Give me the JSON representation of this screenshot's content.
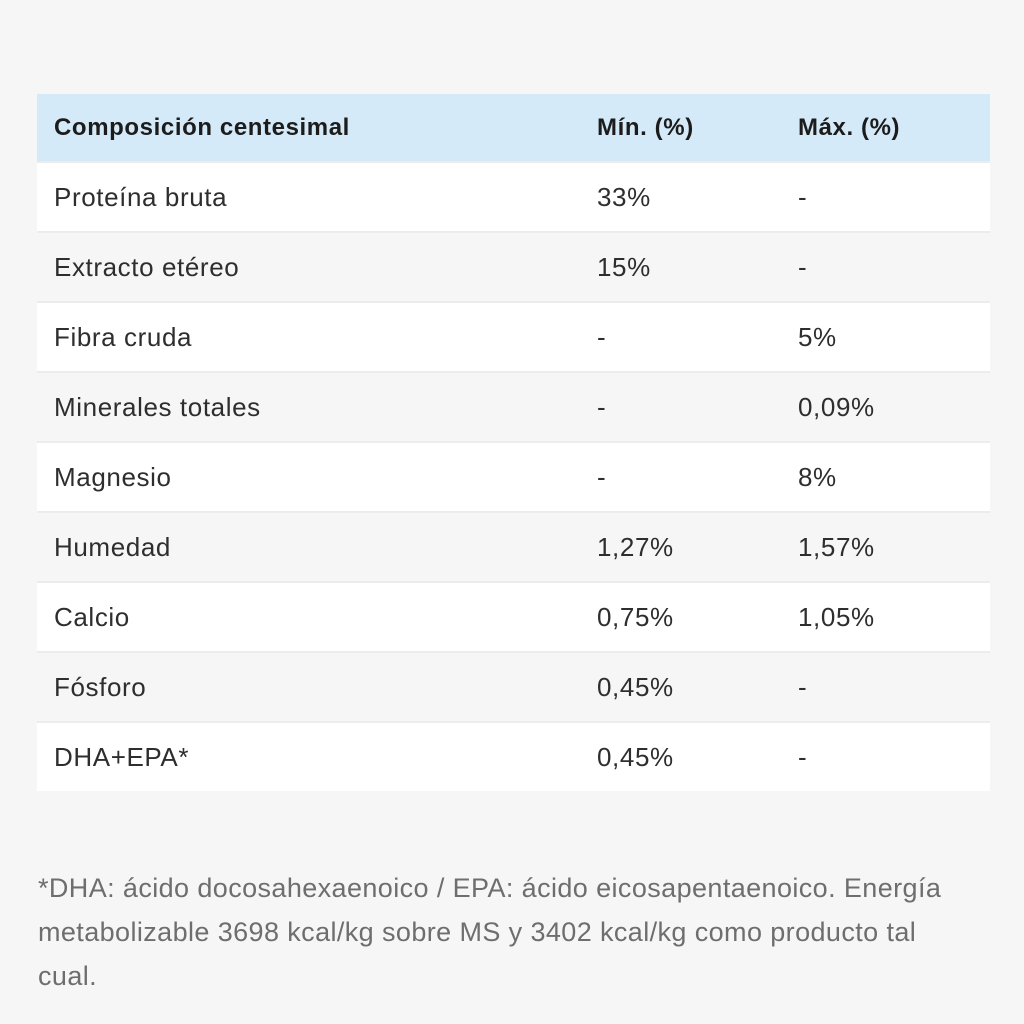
{
  "colors": {
    "page_background": "#f7f6f6",
    "header_background": "#d5eaf8",
    "row_stripe": "#f6f6f6",
    "body_text": "#2e2e2e",
    "footnote_text": "#6e6e6e"
  },
  "table": {
    "header": {
      "col1": "Composición centesimal",
      "col2": "Mín. (%)",
      "col3": "Máx. (%)"
    },
    "rows": [
      {
        "label": "Proteína bruta",
        "min": "33%",
        "max": "-"
      },
      {
        "label": "Extracto etéreo",
        "min": "15%",
        "max": "-"
      },
      {
        "label": "Fibra cruda",
        "min": "-",
        "max": "5%"
      },
      {
        "label": "Minerales totales",
        "min": "-",
        "max": "0,09%"
      },
      {
        "label": "Magnesio",
        "min": "-",
        "max": "8%"
      },
      {
        "label": "Humedad",
        "min": "1,27%",
        "max": "1,57%"
      },
      {
        "label": "Calcio",
        "min": "0,75%",
        "max": "1,05%"
      },
      {
        "label": "Fósforo",
        "min": "0,45%",
        "max": "-"
      },
      {
        "label": "DHA+EPA*",
        "min": "0,45%",
        "max": "-"
      }
    ]
  },
  "footnote": {
    "text": "*DHA: ácido docosahexaenoico / EPA: ácido eicosapentaenoico. Energía metabolizable 3698 kcal/kg sobre MS y 3402 kcal/kg como producto tal cual."
  },
  "chart_data": {
    "type": "table",
    "title": "Composición centesimal",
    "columns": [
      "Composición centesimal",
      "Mín. (%)",
      "Máx. (%)"
    ],
    "rows": [
      [
        "Proteína bruta",
        "33%",
        "-"
      ],
      [
        "Extracto etéreo",
        "15%",
        "-"
      ],
      [
        "Fibra cruda",
        "-",
        "5%"
      ],
      [
        "Minerales totales",
        "-",
        "0,09%"
      ],
      [
        "Magnesio",
        "-",
        "8%"
      ],
      [
        "Humedad",
        "1,27%",
        "1,57%"
      ],
      [
        "Calcio",
        "0,75%",
        "1,05%"
      ],
      [
        "Fósforo",
        "0,45%",
        "-"
      ],
      [
        "DHA+EPA*",
        "0,45%",
        "-"
      ]
    ],
    "footnote": "*DHA: ácido docosahexaenoico / EPA: ácido eicosapentaenoico. Energía metabolizable 3698 kcal/kg sobre MS y 3402 kcal/kg como producto tal cual."
  }
}
